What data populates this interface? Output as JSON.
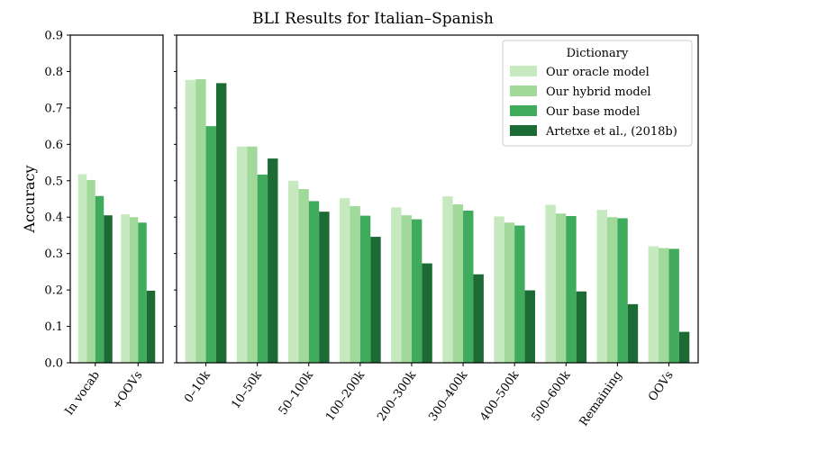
{
  "chart_data": {
    "type": "bar",
    "title": "BLI Results for Italian–Spanish",
    "ylabel": "Accuracy",
    "ylim": [
      0,
      0.9
    ],
    "yticks": [
      "0.0",
      "0.1",
      "0.2",
      "0.3",
      "0.4",
      "0.5",
      "0.6",
      "0.7",
      "0.8",
      "0.9"
    ],
    "grid": false,
    "legend": {
      "title": "Dictionary",
      "placement": "top-right"
    },
    "colors": [
      "#c7e9c0",
      "#a1d99b",
      "#41ab5d",
      "#1d6b34"
    ],
    "series": [
      {
        "name": "Our oracle model"
      },
      {
        "name": "Our hybrid model"
      },
      {
        "name": "Our base model"
      },
      {
        "name": "Artetxe et al., (2018b)"
      }
    ],
    "panels": [
      {
        "categories": [
          "In vocab",
          "+OOVs"
        ],
        "values": [
          [
            0.518,
            0.408
          ],
          [
            0.502,
            0.4
          ],
          [
            0.458,
            0.385
          ],
          [
            0.405,
            0.198
          ]
        ]
      },
      {
        "categories": [
          "0–10k",
          "10–50k",
          "50–100k",
          "100–200k",
          "200–300k",
          "300–400k",
          "400–500k",
          "500–600k",
          "Remaining",
          "OOVs"
        ],
        "values": [
          [
            0.777,
            0.594,
            0.5,
            0.452,
            0.427,
            0.457,
            0.402,
            0.434,
            0.42,
            0.32
          ],
          [
            0.779,
            0.594,
            0.477,
            0.43,
            0.405,
            0.435,
            0.385,
            0.41,
            0.4,
            0.315
          ],
          [
            0.65,
            0.517,
            0.444,
            0.404,
            0.394,
            0.418,
            0.377,
            0.403,
            0.397,
            0.313
          ],
          [
            0.768,
            0.561,
            0.415,
            0.346,
            0.273,
            0.243,
            0.199,
            0.196,
            0.161,
            0.085
          ]
        ]
      }
    ]
  }
}
